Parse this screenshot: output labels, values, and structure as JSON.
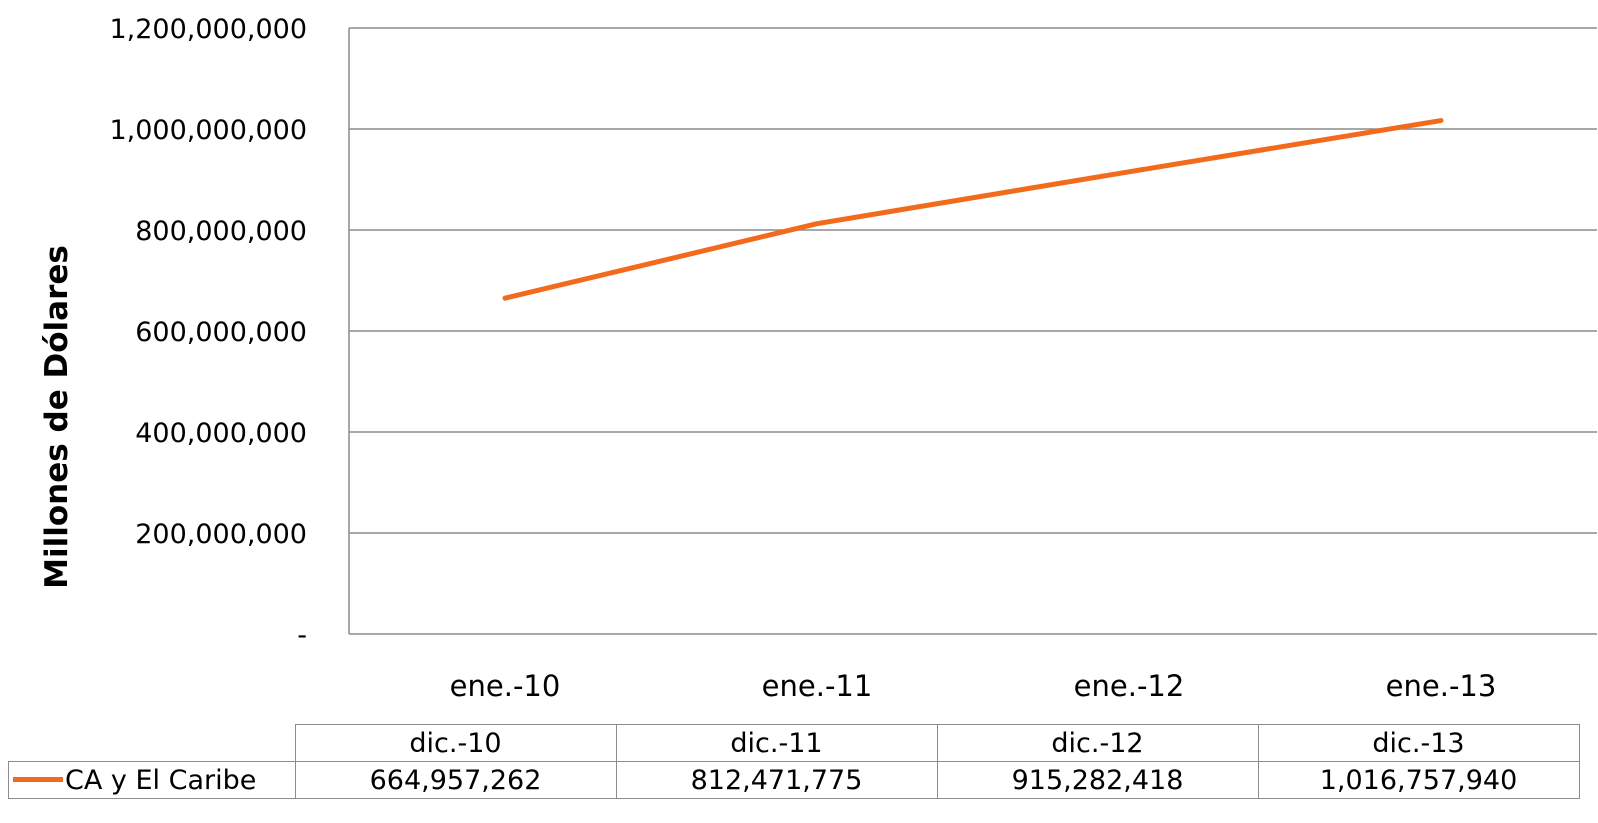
{
  "chart_data": {
    "type": "line",
    "title": "",
    "xlabel": "",
    "ylabel": "Millones de Dólares",
    "x": [
      "ene.-10",
      "ene.-11",
      "ene.-12",
      "ene.-13"
    ],
    "ylim": [
      0,
      1200000000
    ],
    "yticks": [
      0,
      200000000,
      400000000,
      600000000,
      800000000,
      1000000000,
      1200000000
    ],
    "ytick_labels": [
      "-",
      "200,000,000",
      "400,000,000",
      "600,000,000",
      "800,000,000",
      "1,000,000,000",
      "1,200,000,000"
    ],
    "grid": true,
    "series": [
      {
        "name": "CA y El Caribe",
        "values": [
          664957262,
          812471775,
          915282418,
          1016757940
        ],
        "color": "#f26b1d"
      }
    ],
    "data_table": {
      "headers": [
        "dic.-10",
        "dic.-11",
        "dic.-12",
        "dic.-13"
      ],
      "rows": [
        {
          "series": "CA y El Caribe",
          "cells": [
            "664,957,262",
            "812,471,775",
            "915,282,418",
            "1,016,757,940"
          ]
        }
      ]
    }
  }
}
